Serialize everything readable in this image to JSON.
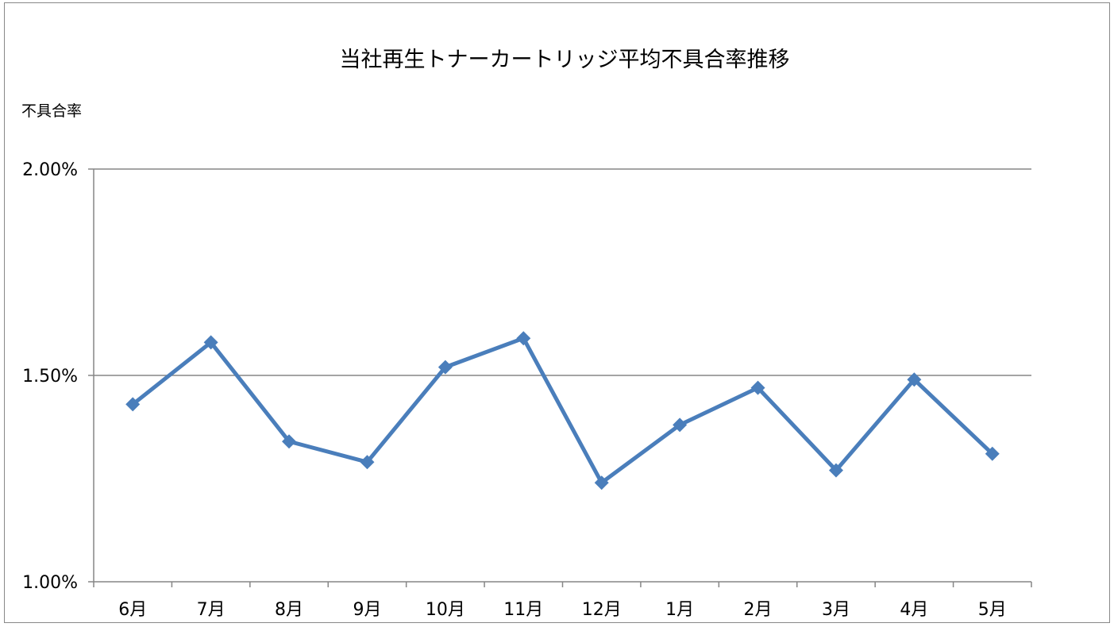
{
  "chart_data": {
    "type": "line",
    "title": "当社再生トナーカートリッジ平均不具合率推移",
    "ylabel": "不具合率",
    "xlabel": "",
    "categories": [
      "6月",
      "7月",
      "8月",
      "9月",
      "10月",
      "11月",
      "12月",
      "1月",
      "2月",
      "3月",
      "4月",
      "5月"
    ],
    "series": [
      {
        "values": [
          1.43,
          1.58,
          1.34,
          1.29,
          1.52,
          1.59,
          1.24,
          1.38,
          1.47,
          1.27,
          1.49,
          1.31
        ]
      }
    ],
    "ylim": [
      1.0,
      2.0
    ],
    "yticks": [
      1.0,
      1.5,
      2.0
    ],
    "ytick_labels": [
      "1.00%",
      "1.50%",
      "2.00%"
    ],
    "grid": true,
    "legend": "none",
    "colors": {
      "series": "#4a7ebb",
      "grid": "#868686",
      "axis": "#868686"
    }
  }
}
